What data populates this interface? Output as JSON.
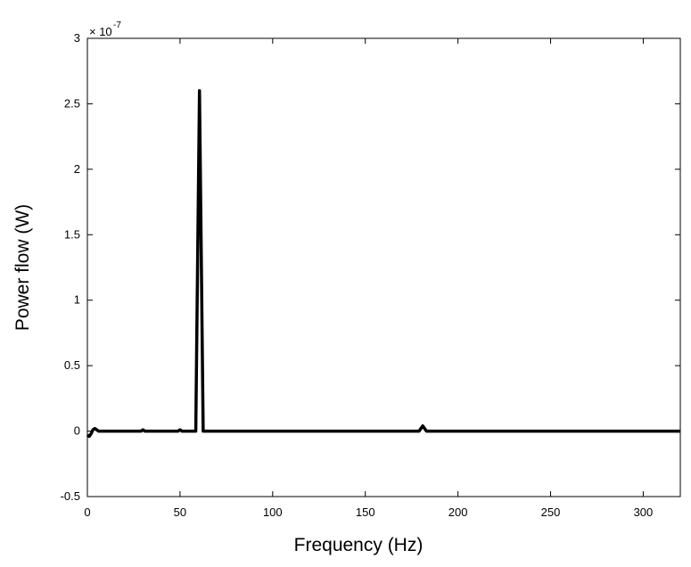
{
  "chart_data": {
    "type": "line",
    "x_label": "Frequency (Hz)",
    "y_label": "Power flow (W)",
    "y_scale_label": {
      "base": "× 10",
      "exponent": "-7"
    },
    "x": [
      0,
      1,
      2,
      3,
      4,
      5,
      6,
      29,
      30,
      31,
      49,
      50,
      51,
      58.5,
      60.5,
      62.5,
      179,
      181,
      183,
      320
    ],
    "series": [
      {
        "name": "Power flow",
        "color": "#000000",
        "values": [
          -0.03,
          -0.04,
          -0.02,
          0.01,
          0.02,
          0.01,
          0,
          0,
          0.01,
          0,
          0,
          0.01,
          0,
          0,
          2.6,
          0,
          0,
          0.04,
          0,
          0
        ]
      }
    ],
    "xlim": [
      0,
      320
    ],
    "xticks": [
      0,
      50,
      100,
      150,
      200,
      250,
      300
    ],
    "ylim": [
      -0.5,
      3
    ],
    "yticks": [
      -0.5,
      0,
      0.5,
      1,
      1.5,
      2,
      2.5,
      3
    ],
    "grid": false
  }
}
